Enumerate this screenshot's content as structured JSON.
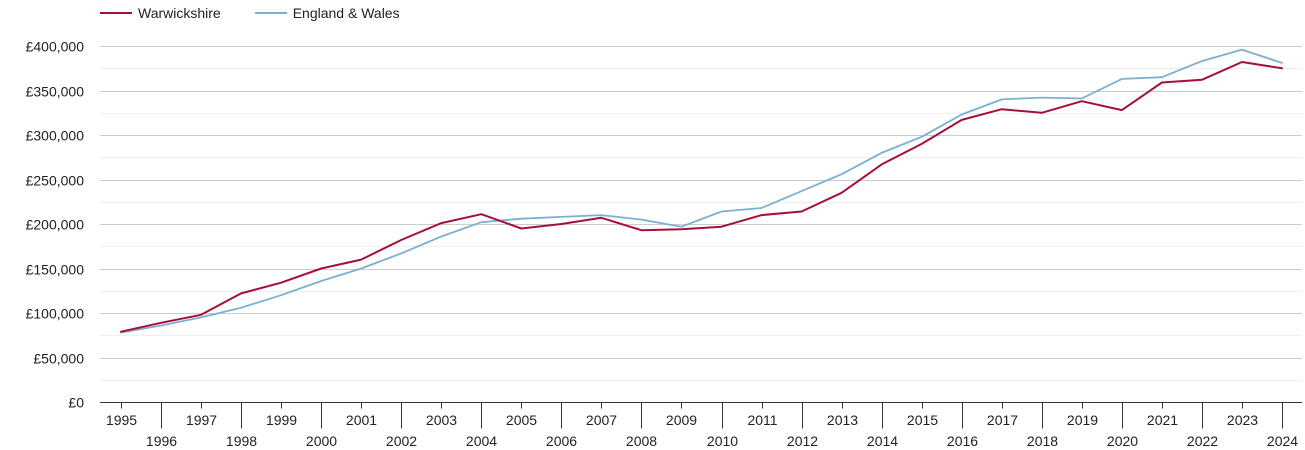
{
  "chart_data": {
    "type": "line",
    "title": "",
    "xlabel": "",
    "ylabel": "",
    "x": [
      1995,
      1996,
      1997,
      1998,
      1999,
      2000,
      2001,
      2002,
      2003,
      2004,
      2005,
      2006,
      2007,
      2008,
      2009,
      2010,
      2011,
      2012,
      2013,
      2014,
      2015,
      2016,
      2017,
      2018,
      2019,
      2020,
      2021,
      2022,
      2023,
      2024
    ],
    "ylim": [
      0,
      400000
    ],
    "yticks": [
      0,
      50000,
      100000,
      150000,
      200000,
      250000,
      300000,
      350000,
      400000
    ],
    "ytick_labels": [
      "£0",
      "£50,000",
      "£100,000",
      "£150,000",
      "£200,000",
      "£250,000",
      "£300,000",
      "£350,000",
      "£400,000"
    ],
    "grid": true,
    "legend_position": "top-left",
    "series": [
      {
        "name": "Warwickshire",
        "color": "#a50f3c",
        "values": [
          79000,
          89000,
          98000,
          122000,
          134000,
          150000,
          160000,
          182000,
          201000,
          211000,
          195000,
          200000,
          207000,
          193000,
          194000,
          197000,
          210000,
          214000,
          235000,
          267000,
          290000,
          317000,
          329000,
          325000,
          338000,
          328000,
          359000,
          362000,
          382000,
          375000
        ]
      },
      {
        "name": "England & Wales",
        "color": "#7bafd4",
        "values": [
          78000,
          86000,
          95000,
          106000,
          120000,
          136000,
          150000,
          167000,
          186000,
          202000,
          206000,
          208000,
          210000,
          205000,
          197000,
          214000,
          218000,
          237000,
          256000,
          280000,
          298000,
          323000,
          340000,
          342000,
          341000,
          363000,
          365000,
          383000,
          396000,
          381000
        ]
      }
    ]
  }
}
